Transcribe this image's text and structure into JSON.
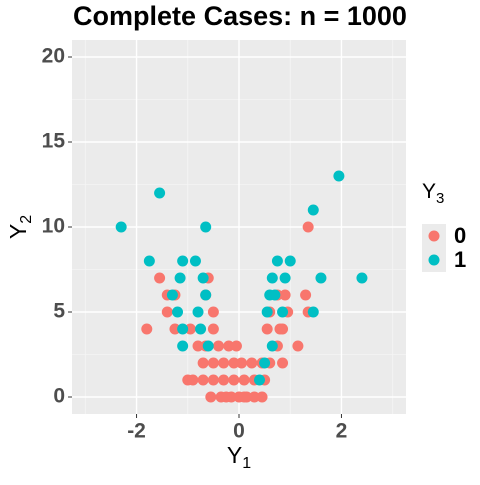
{
  "chart_data": {
    "type": "scatter",
    "title": "Complete Cases: n = 1000",
    "xlabel_main": "Y",
    "xlabel_sub": "1",
    "ylabel_main": "Y",
    "ylabel_sub": "2",
    "legend_title_main": "Y",
    "legend_title_sub": "3",
    "legend_position": "right",
    "grid": true,
    "xlim": [
      -3.26,
      3.26
    ],
    "xticks": [
      -2,
      0,
      2
    ],
    "xminor": [
      -3,
      -1,
      1,
      3
    ],
    "ylim": [
      -1,
      21
    ],
    "yticks": [
      0,
      5,
      10,
      15,
      20
    ],
    "yminor": [
      2.5,
      7.5,
      12.5,
      17.5
    ],
    "series": [
      {
        "name": "0",
        "color": "#F8766D",
        "x": [
          1.35,
          -1.55,
          -0.6,
          -1.8,
          -1.4,
          -1.25,
          -1.4,
          -0.65,
          -0.5,
          -1.25,
          -0.95,
          -0.5,
          -0.8,
          -0.65,
          -0.4,
          -0.2,
          -0.7,
          -0.5,
          -0.3,
          -0.1,
          -0.9,
          -0.7,
          -0.5,
          -0.3,
          -0.1,
          0.1,
          0.3,
          0.5,
          -0.55,
          -0.35,
          -0.15,
          0,
          0.15,
          0.3,
          0.45,
          -0.25,
          0.1,
          0.25,
          0.45,
          0.6,
          0.75,
          0.55,
          0.8,
          0.85,
          0.6,
          0.95,
          0.9,
          1.3,
          1.35,
          0.75,
          1.15,
          0.85,
          -1,
          0.05,
          -0.05
        ],
        "y": [
          10,
          7,
          7,
          4,
          6,
          6,
          5,
          6,
          5,
          4,
          4,
          4,
          3,
          3,
          3,
          3,
          2,
          2,
          2,
          2,
          1,
          1,
          1,
          1,
          1,
          1,
          1,
          1,
          0,
          0,
          0,
          0,
          0,
          0,
          0,
          0,
          0,
          2,
          2,
          2,
          3,
          4,
          4,
          4,
          5,
          5,
          6,
          6,
          5,
          6,
          3,
          2,
          1,
          2,
          3
        ]
      },
      {
        "name": "1",
        "color": "#00BFC4",
        "x": [
          -2.3,
          -1.55,
          -1.75,
          -0.65,
          1.95,
          1.45,
          -1.1,
          -1.15,
          -0.85,
          -0.7,
          -0.65,
          -1.3,
          -1.2,
          -1.1,
          -1.1,
          -0.75,
          -0.6,
          -0.8,
          0.75,
          0.65,
          0.9,
          1.0,
          1.6,
          2.4,
          0.6,
          0.7,
          0.55,
          0.65,
          0.5,
          0.4,
          1.45,
          0.85
        ],
        "y": [
          10,
          12,
          8,
          10,
          13,
          11,
          8,
          7,
          8,
          7,
          6,
          6,
          5,
          4,
          3,
          4,
          3,
          5,
          8,
          7,
          7,
          8,
          7,
          7,
          6,
          6,
          5,
          3,
          2,
          1,
          5,
          5
        ]
      }
    ]
  }
}
